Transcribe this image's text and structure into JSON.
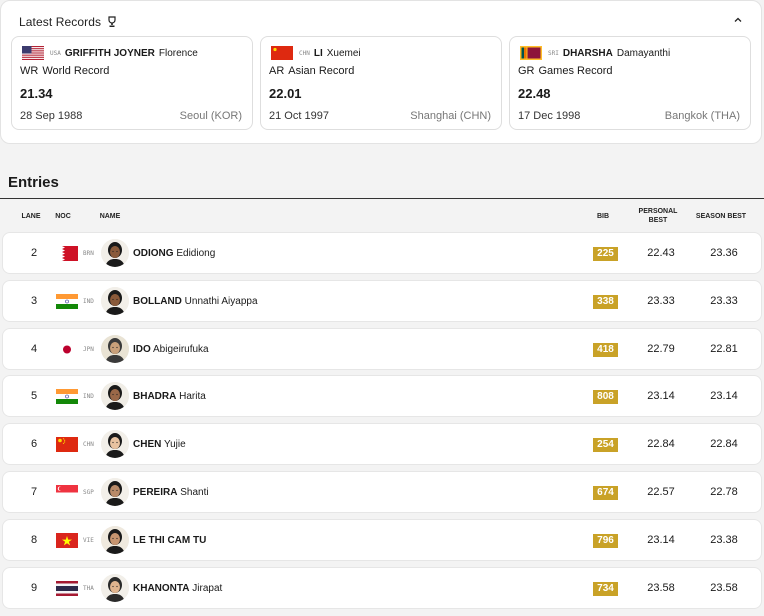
{
  "records": {
    "title": "Latest Records",
    "items": [
      {
        "noc": "USA",
        "surname": "GRIFFITH JOYNER",
        "given": "Florence",
        "code": "WR",
        "label": "World Record",
        "mark": "21.34",
        "date": "28 Sep 1988",
        "venue": "Seoul (KOR)",
        "flag": "usa"
      },
      {
        "noc": "CHN",
        "surname": "LI",
        "given": "Xuemei",
        "code": "AR",
        "label": "Asian Record",
        "mark": "22.01",
        "date": "21 Oct 1997",
        "venue": "Shanghai (CHN)",
        "flag": "chn"
      },
      {
        "noc": "SRI",
        "surname": "DHARSHA",
        "given": "Damayanthi",
        "code": "GR",
        "label": "Games Record",
        "mark": "22.48",
        "date": "17 Dec 1998",
        "venue": "Bangkok (THA)",
        "flag": "sri"
      }
    ]
  },
  "entries": {
    "title": "Entries",
    "headers": {
      "lane": "LANE",
      "noc": "NOC",
      "name": "NAME",
      "bib": "BIB",
      "pb": "PERSONAL BEST",
      "sb": "SEASON BEST"
    },
    "rows": [
      {
        "lane": "2",
        "noc": "BRN",
        "flag": "brn",
        "surname": "ODIONG",
        "given": "Edidiong",
        "bib": "225",
        "pb": "22.43",
        "sb": "23.36"
      },
      {
        "lane": "3",
        "noc": "IND",
        "flag": "ind",
        "surname": "BOLLAND",
        "given": "Unnathi Aiyappa",
        "bib": "338",
        "pb": "23.33",
        "sb": "23.33"
      },
      {
        "lane": "4",
        "noc": "JPN",
        "flag": "jpn",
        "surname": "IDO",
        "given": "Abigeirufuka",
        "bib": "418",
        "pb": "22.79",
        "sb": "22.81"
      },
      {
        "lane": "5",
        "noc": "IND",
        "flag": "ind",
        "surname": "BHADRA",
        "given": "Harita",
        "bib": "808",
        "pb": "23.14",
        "sb": "23.14"
      },
      {
        "lane": "6",
        "noc": "CHN",
        "flag": "chn",
        "surname": "CHEN",
        "given": "Yujie",
        "bib": "254",
        "pb": "22.84",
        "sb": "22.84"
      },
      {
        "lane": "7",
        "noc": "SGP",
        "flag": "sgp",
        "surname": "PEREIRA",
        "given": "Shanti",
        "bib": "674",
        "pb": "22.57",
        "sb": "22.78"
      },
      {
        "lane": "8",
        "noc": "VIE",
        "flag": "vie",
        "surname": "LE THI CAM TU",
        "given": "",
        "bib": "796",
        "pb": "23.14",
        "sb": "23.38"
      },
      {
        "lane": "9",
        "noc": "THA",
        "flag": "tha",
        "surname": "KHANONTA",
        "given": "Jirapat",
        "bib": "734",
        "pb": "23.58",
        "sb": "23.58"
      }
    ]
  },
  "colors": {
    "bib": "#c9a227",
    "rule": "#333333"
  }
}
